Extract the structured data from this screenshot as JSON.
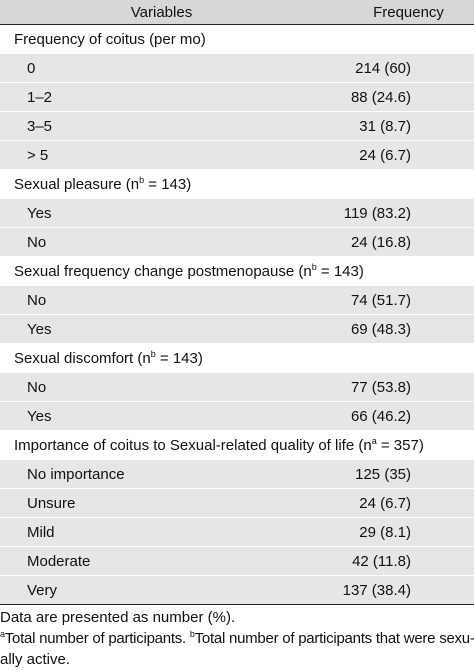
{
  "header": {
    "col1": "Variables",
    "col2": "Frequency"
  },
  "sections": [
    {
      "label": "Frequency of coitus (per mo)",
      "items": [
        {
          "label": "0",
          "value": "214 (60)"
        },
        {
          "label": "1–2",
          "value": "88 (24.6)"
        },
        {
          "label": "3–5",
          "value": "31 (8.7)"
        },
        {
          "label": "> 5",
          "value": "24 (6.7)"
        }
      ]
    },
    {
      "label": "Sexual pleasure (n",
      "sup": "b",
      "suffix": " = 143)",
      "items": [
        {
          "label": "Yes",
          "value": "119 (83.2)"
        },
        {
          "label": "No",
          "value": "24 (16.8)"
        }
      ]
    },
    {
      "label": "Sexual frequency change postmenopause (n",
      "sup": "b",
      "suffix": " = 143)",
      "items": [
        {
          "label": "No",
          "value": "74 (51.7)"
        },
        {
          "label": "Yes",
          "value": "69 (48.3)"
        }
      ]
    },
    {
      "label": "Sexual discomfort (n",
      "sup": "b",
      "suffix": " = 143)",
      "items": [
        {
          "label": "No",
          "value": "77 (53.8)"
        },
        {
          "label": "Yes",
          "value": "66 (46.2)"
        }
      ]
    },
    {
      "label": "Importance of coitus to Sexual-related quality of life (n",
      "sup": "a",
      "suffix": " = 357)",
      "items": [
        {
          "label": "No importance",
          "value": "125 (35)"
        },
        {
          "label": "Unsure",
          "value": "24 (6.7)"
        },
        {
          "label": "Mild",
          "value": "29 (8.1)"
        },
        {
          "label": "Moderate",
          "value": "42 (11.8)"
        },
        {
          "label": "Very",
          "value": "137 (38.4)"
        }
      ]
    }
  ],
  "notes": {
    "line1": "Data are presented as number (%).",
    "sup_a": "a",
    "text_a": "Total number of participants. ",
    "sup_b": "b",
    "text_b": "Total number of participants that were sexu-",
    "line3": "ally active."
  }
}
